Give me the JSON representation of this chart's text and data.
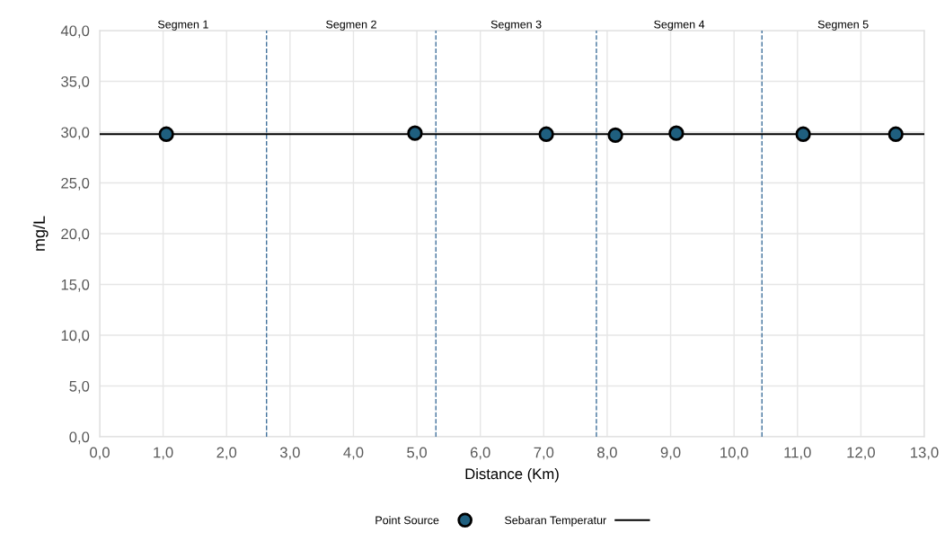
{
  "chart_data": {
    "type": "scatter",
    "xlabel": "Distance (Km)",
    "ylabel": "mg/L",
    "series": [
      {
        "name": "Point Source",
        "color": "#1f5f7f",
        "x": [
          1.05,
          4.97,
          7.04,
          8.13,
          9.09,
          11.09,
          12.55
        ],
        "values": [
          29.8,
          29.9,
          29.8,
          29.7,
          29.9,
          29.8,
          29.8
        ]
      },
      {
        "name": "Sebaran Temperatur",
        "type": "line",
        "marker": "none",
        "color": "#000000",
        "x": [
          0,
          13
        ],
        "values": [
          29.8,
          29.8
        ]
      }
    ],
    "ref_lines": [
      {
        "axis": "x",
        "value": 2.63,
        "color": "#41719c",
        "line_style": "dashed"
      },
      {
        "axis": "x",
        "value": 5.3,
        "color": "#41719c",
        "line_style": "dashed"
      },
      {
        "axis": "x",
        "value": 7.83,
        "color": "#41719c",
        "line_style": "dashed"
      },
      {
        "axis": "x",
        "value": 10.44,
        "color": "#41719c",
        "line_style": "dashed"
      }
    ],
    "annotations": [
      "Segmen 1",
      "Segmen 2",
      "Segmen 3",
      "Segmen 4",
      "Segmen 5"
    ],
    "xlim": [
      0,
      13
    ],
    "xticks": [
      {
        "value": 0,
        "label": "0,0"
      },
      {
        "value": 1,
        "label": "1,0"
      },
      {
        "value": 2,
        "label": "2,0"
      },
      {
        "value": 3,
        "label": "3,0"
      },
      {
        "value": 4,
        "label": "4,0"
      },
      {
        "value": 5,
        "label": "5,0"
      },
      {
        "value": 6,
        "label": "6,0"
      },
      {
        "value": 7,
        "label": "7,0"
      },
      {
        "value": 8,
        "label": "8,0"
      },
      {
        "value": 9,
        "label": "9,0"
      },
      {
        "value": 10,
        "label": "10,0"
      },
      {
        "value": 11,
        "label": "11,0"
      },
      {
        "value": 12,
        "label": "12,0"
      },
      {
        "value": 13,
        "label": "13,0"
      }
    ],
    "ylim": [
      0,
      40
    ],
    "yticks": [
      {
        "value": 0,
        "label": "0,0"
      },
      {
        "value": 5,
        "label": "5,0"
      },
      {
        "value": 10,
        "label": "10,0"
      },
      {
        "value": 15,
        "label": "15,0"
      },
      {
        "value": 20,
        "label": "20,0"
      },
      {
        "value": 25,
        "label": "25,0"
      },
      {
        "value": 30,
        "label": "30,0"
      },
      {
        "value": 35,
        "label": "35,0"
      },
      {
        "value": 40,
        "label": "40,0"
      }
    ],
    "grid": true,
    "legend": "bottom",
    "marker": "circle"
  }
}
